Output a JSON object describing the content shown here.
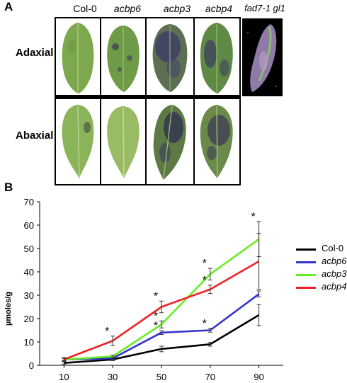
{
  "panelA": {
    "letter": "A",
    "genotypes": [
      "Col-0",
      "acbp6",
      "acbp3",
      "acbp4",
      "fad7-1 gl1"
    ],
    "rows": [
      "Adaxial",
      "Abaxial"
    ]
  },
  "panelB": {
    "letter": "B"
  },
  "chart_data": {
    "type": "line",
    "title": "",
    "xlabel": "",
    "ylabel": "µmoles/g",
    "x": [
      10,
      30,
      50,
      70,
      90
    ],
    "ylim": [
      0,
      70
    ],
    "yticks": [
      0,
      10,
      20,
      30,
      40,
      50,
      60,
      70
    ],
    "grid": false,
    "legend_position": "right",
    "significance_marker": "*",
    "series": [
      {
        "name": "Col-0",
        "color": "#000000",
        "values": [
          1,
          2.5,
          7,
          9,
          21.5
        ],
        "errors": [
          0.5,
          0.5,
          1.2,
          0.8,
          4.5
        ],
        "significant": [
          false,
          false,
          false,
          false,
          false
        ]
      },
      {
        "name": "acbp6",
        "color": "#3333cc",
        "values": [
          2.5,
          3,
          14,
          15,
          30.5
        ],
        "errors": [
          0.8,
          0.6,
          0.8,
          0.8,
          1.3
        ],
        "significant": [
          false,
          false,
          true,
          true,
          false
        ]
      },
      {
        "name": "acbp3",
        "color": "#66ee22",
        "values": [
          2.5,
          3.8,
          17.5,
          39,
          54
        ],
        "errors": [
          0.5,
          0.5,
          1.5,
          2.5,
          7.5
        ],
        "significant": [
          false,
          false,
          true,
          true,
          true
        ]
      },
      {
        "name": "acbp4",
        "color": "#ee2222",
        "values": [
          2.5,
          10.5,
          25,
          32.5,
          44.5
        ],
        "errors": [
          0.5,
          2,
          2.5,
          1.8,
          12
        ],
        "significant": [
          false,
          true,
          true,
          true,
          false
        ]
      }
    ]
  }
}
